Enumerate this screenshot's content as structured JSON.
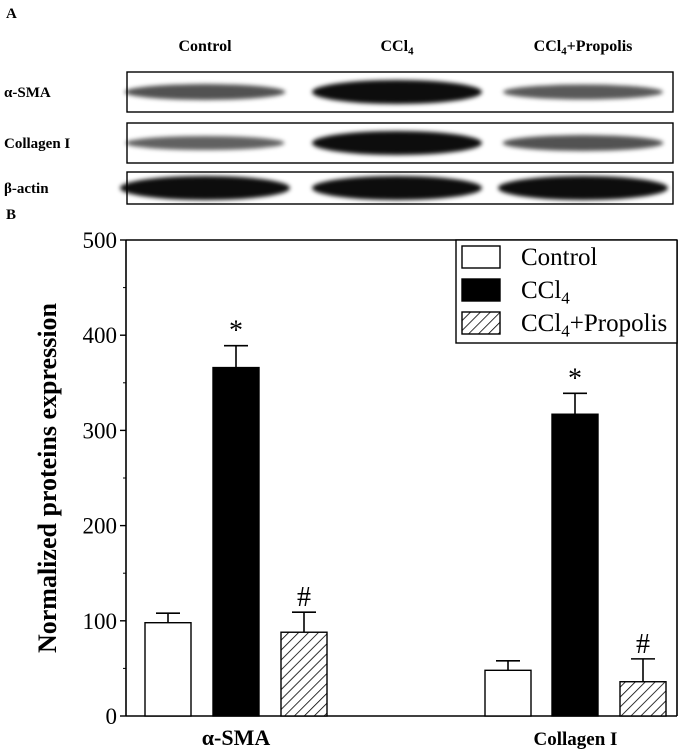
{
  "panel_a": {
    "label": "A",
    "columns": [
      {
        "base": "Control",
        "sub": "",
        "rest": ""
      },
      {
        "base": "CCl",
        "sub": "4",
        "rest": ""
      },
      {
        "base": "CCl",
        "sub": "4",
        "rest": "+Propolis"
      }
    ],
    "rows": [
      {
        "label": "α-SMA",
        "intensity": [
          0.55,
          1.0,
          0.5
        ]
      },
      {
        "label": "Collagen I",
        "intensity": [
          0.45,
          1.0,
          0.55
        ]
      },
      {
        "label": "β-actin",
        "intensity": [
          1.0,
          1.0,
          1.0
        ]
      }
    ]
  },
  "chart_data": {
    "panel_label": "B",
    "type": "bar",
    "categories": [
      "α-SMA",
      "Collagen I"
    ],
    "series": [
      {
        "name_base": "Control",
        "name_sub": "",
        "name_rest": "",
        "fill": "#ffffff",
        "pattern": "none",
        "values": [
          98,
          48
        ],
        "errors": [
          10,
          10
        ],
        "marks": [
          "",
          ""
        ]
      },
      {
        "name_base": "CCl",
        "name_sub": "4",
        "name_rest": "",
        "fill": "#000000",
        "pattern": "none",
        "values": [
          366,
          317
        ],
        "errors": [
          23,
          22
        ],
        "marks": [
          "*",
          "*"
        ]
      },
      {
        "name_base": "CCl",
        "name_sub": "4",
        "name_rest": "+Propolis",
        "fill": "#ffffff",
        "pattern": "hatch",
        "values": [
          88,
          36
        ],
        "errors": [
          21,
          24
        ],
        "marks": [
          "#",
          "#"
        ]
      }
    ],
    "ylabel": "Normalized proteins expression",
    "ylim": [
      0,
      500
    ],
    "yticks": [
      0,
      100,
      200,
      300,
      400,
      500
    ],
    "legend": "top-right",
    "grid": false
  }
}
